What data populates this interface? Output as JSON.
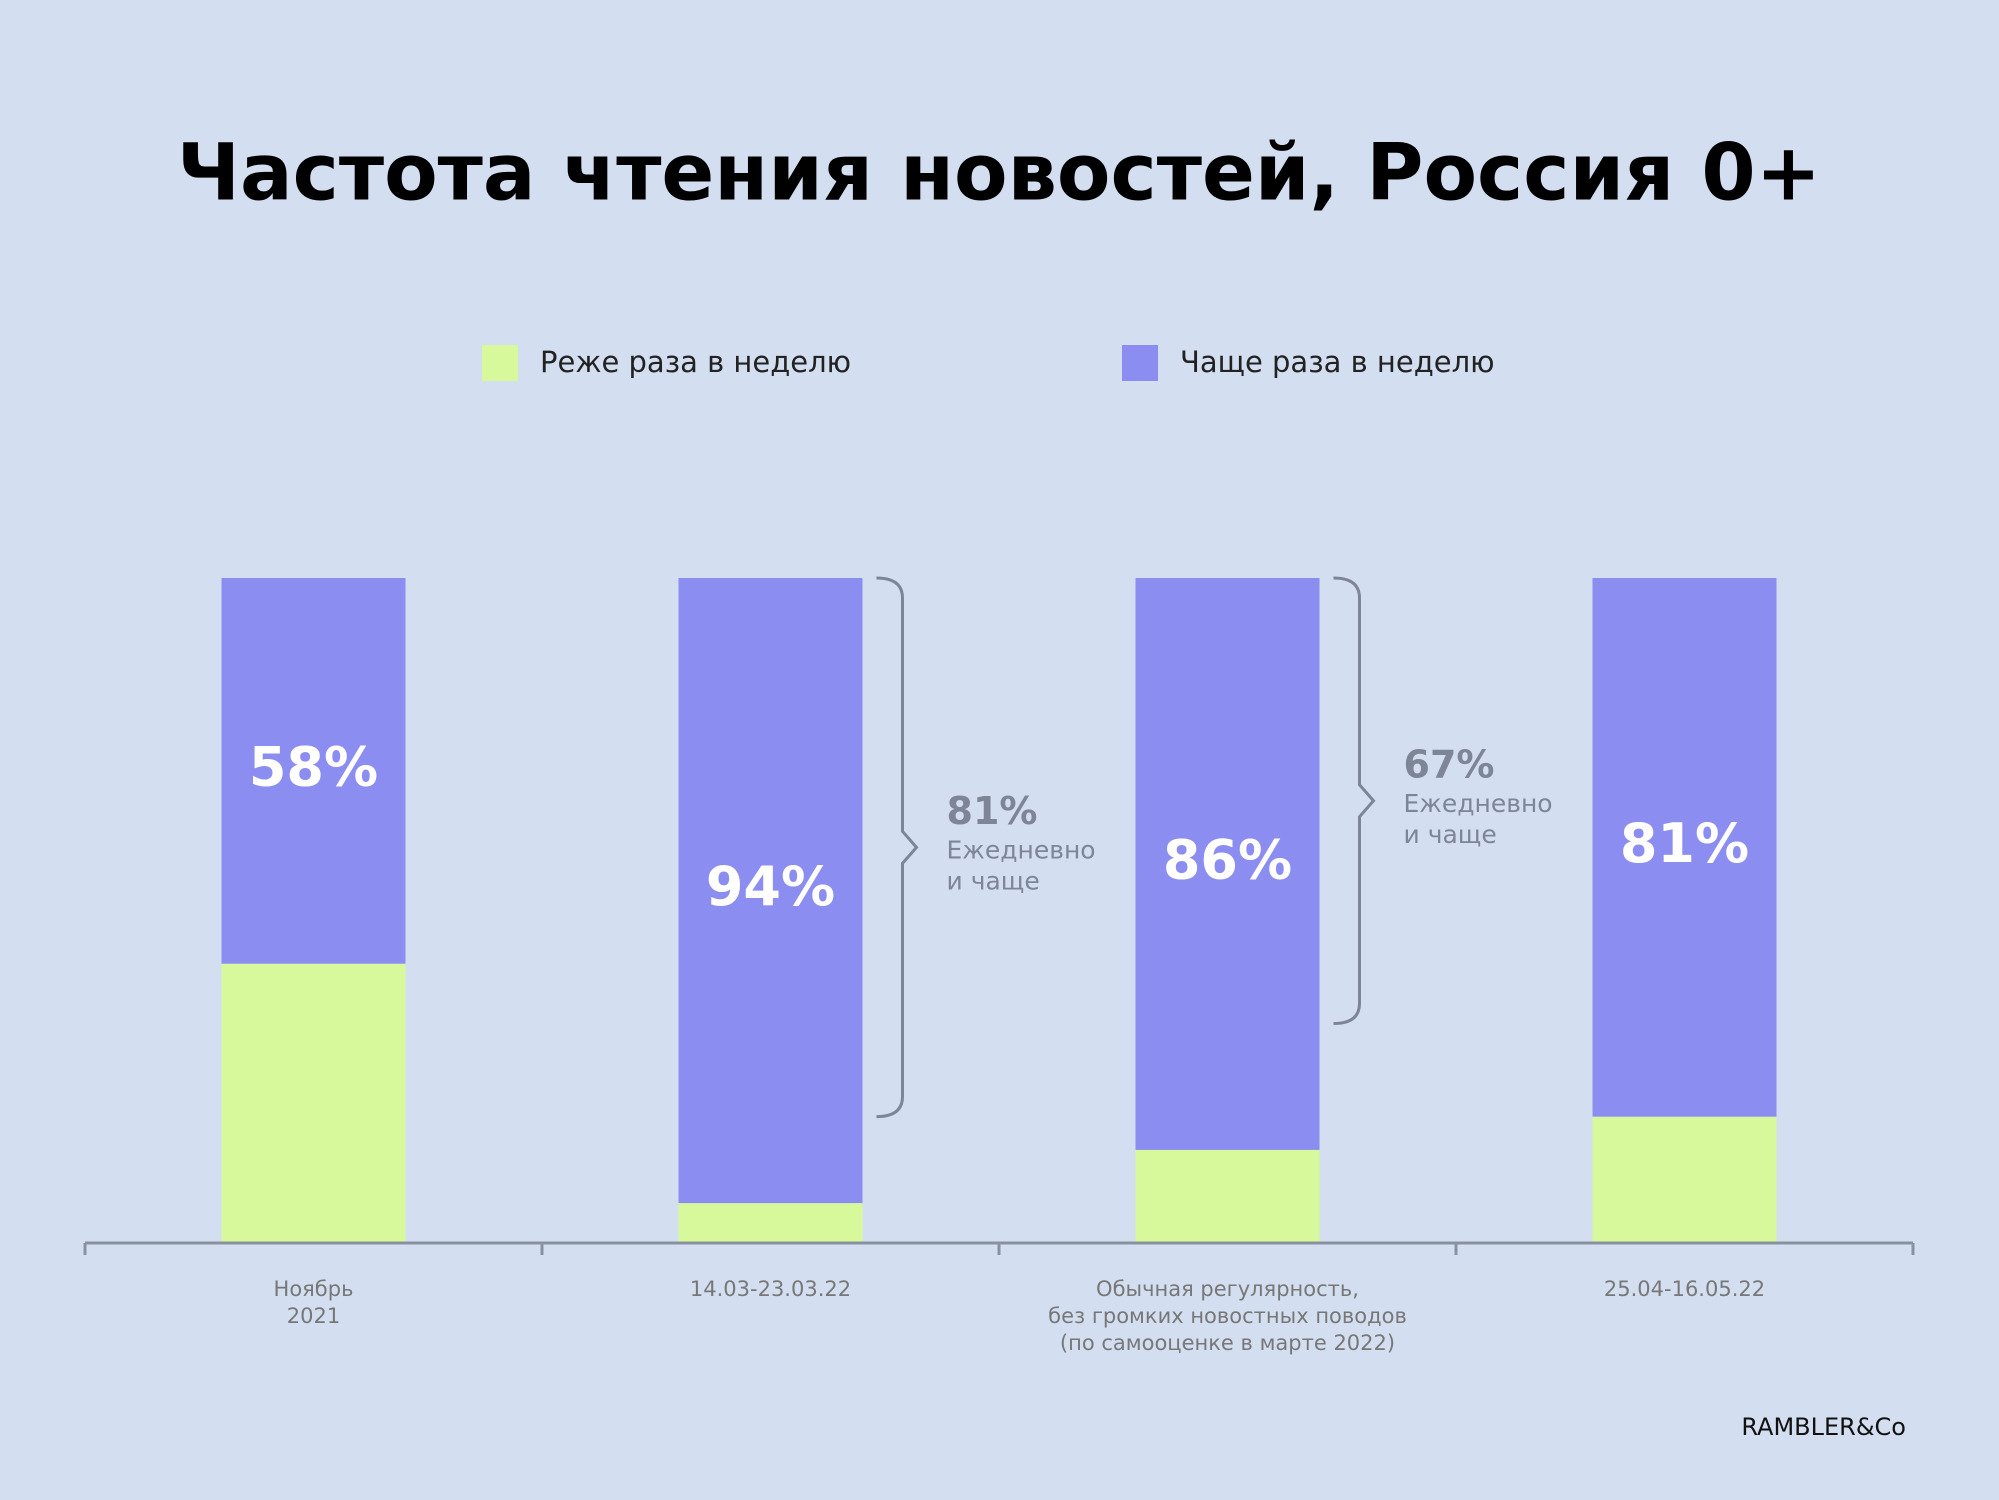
{
  "chart_data": {
    "type": "stacked_bar",
    "title": "Частота чтения новостей, Россия 0+",
    "categories": [
      [
        "Ноябрь",
        "2021"
      ],
      [
        "14.03-23.03.22"
      ],
      [
        "Обычная регулярность,",
        "без громких новостных поводов",
        "(по самооценке в марте 2022)"
      ],
      [
        "25.04-16.05.22"
      ]
    ],
    "series": [
      {
        "name": "Реже раза в неделю",
        "color": "#d8f89c",
        "values": [
          42,
          6,
          14,
          19
        ]
      },
      {
        "name": "Чаще раза в неделю",
        "color": "#8b8ef0",
        "values": [
          58,
          94,
          86,
          81
        ],
        "value_labels": [
          "58%",
          "94%",
          "86%",
          "81%"
        ]
      }
    ],
    "ylim": [
      0,
      100
    ],
    "annotations": {
      "values": [
        null,
        81,
        67,
        null
      ],
      "value_labels": [
        null,
        "81%",
        "67%",
        null
      ],
      "text": [
        "Ежедневно",
        "и чаще"
      ],
      "color": "#7d8596"
    },
    "logo": "RAMBLER&Co"
  }
}
